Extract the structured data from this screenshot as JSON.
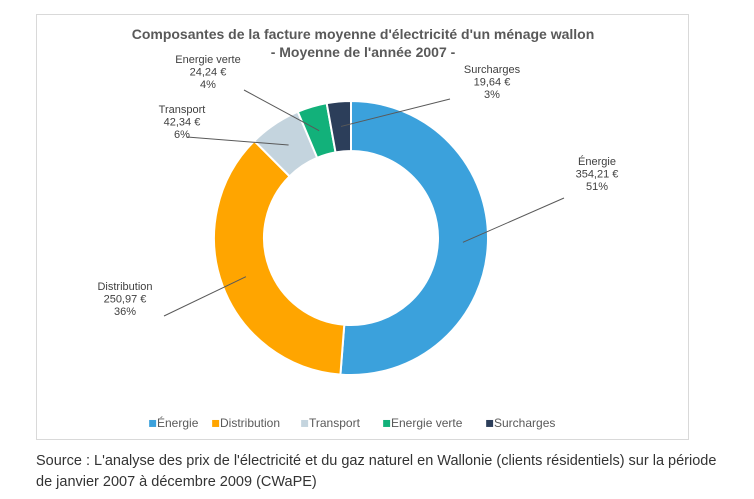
{
  "chart_data": {
    "type": "pie",
    "subtype": "donut",
    "title": "Composantes de la facture moyenne d'électricité d'un ménage wallon",
    "subtitle": "- Moyenne de l'année 2007 -",
    "categories": [
      "Énergie",
      "Distribution",
      "Transport",
      "Energie verte",
      "Surcharges"
    ],
    "values": [
      354.21,
      250.97,
      42.34,
      24.24,
      19.64
    ],
    "value_labels": [
      "354,21 €",
      "250,97 €",
      "42,34 €",
      "24,24 €",
      "19,64 €"
    ],
    "percent_labels": [
      "51%",
      "36%",
      "6%",
      "4%",
      "3%"
    ],
    "colors": [
      "#3ba1dc",
      "#ffa500",
      "#c4d4de",
      "#12b17a",
      "#2c3e5a"
    ],
    "legend_position": "bottom",
    "legend_markers": [
      "▪",
      "▪",
      "▪",
      "▪",
      "▪"
    ]
  },
  "source": "Source : L'analyse des prix de l'électricité et du gaz naturel en Wallonie (clients résidentiels) sur la période de janvier 2007 à décembre 2009 (CWaPE)"
}
